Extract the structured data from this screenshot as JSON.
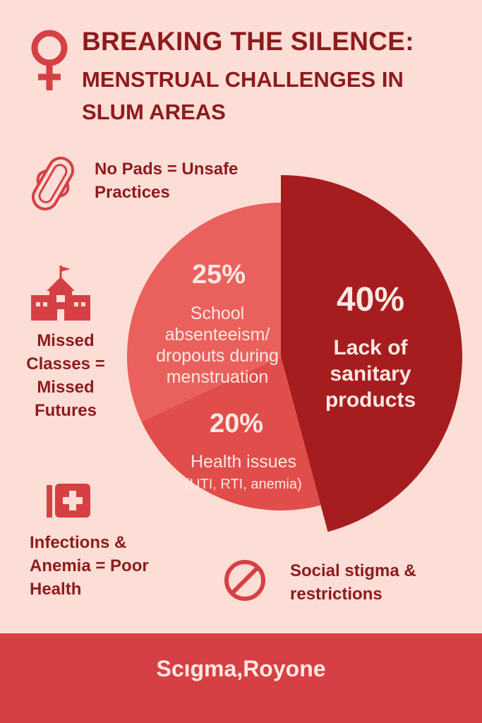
{
  "header": {
    "title": "BREAKING THE SILENCE:",
    "subtitle": "MENSTRUAL CHALLENGES IN SLUM AREAS"
  },
  "callouts": {
    "pads": "No Pads = Unsafe Practices",
    "classes": "Missed Classes = Missed Futures",
    "health": "Infections & Anemia = Poor Health",
    "stigma": "Social stigma & restrictions"
  },
  "icons": {
    "pads": "sanitary-pad-icon",
    "classes": "school-icon",
    "health": "first-aid-kit-icon",
    "stigma": "prohibited-icon",
    "header": "female-symbol-icon"
  },
  "footer": {
    "text": "Scıgma,Royone"
  },
  "colors": {
    "background": "#fcded6",
    "title": "#8e1a1d",
    "accent": "#d64045",
    "slice_dark": "#a61d1f",
    "slice_mid": "#e14d4b",
    "slice_light": "#e9605d",
    "label_text": "#fde8e2"
  },
  "chart_data": {
    "type": "pie",
    "title": "",
    "slices": [
      {
        "percent": "40%",
        "value": 40,
        "label": "Lack of sanitary products"
      },
      {
        "percent": "20%",
        "value": 20,
        "label": "Health issues (UTI, RTI, anemia)"
      },
      {
        "percent": "25%",
        "value": 25,
        "label": "School absenteeism/ dropouts during menstruation"
      }
    ]
  }
}
